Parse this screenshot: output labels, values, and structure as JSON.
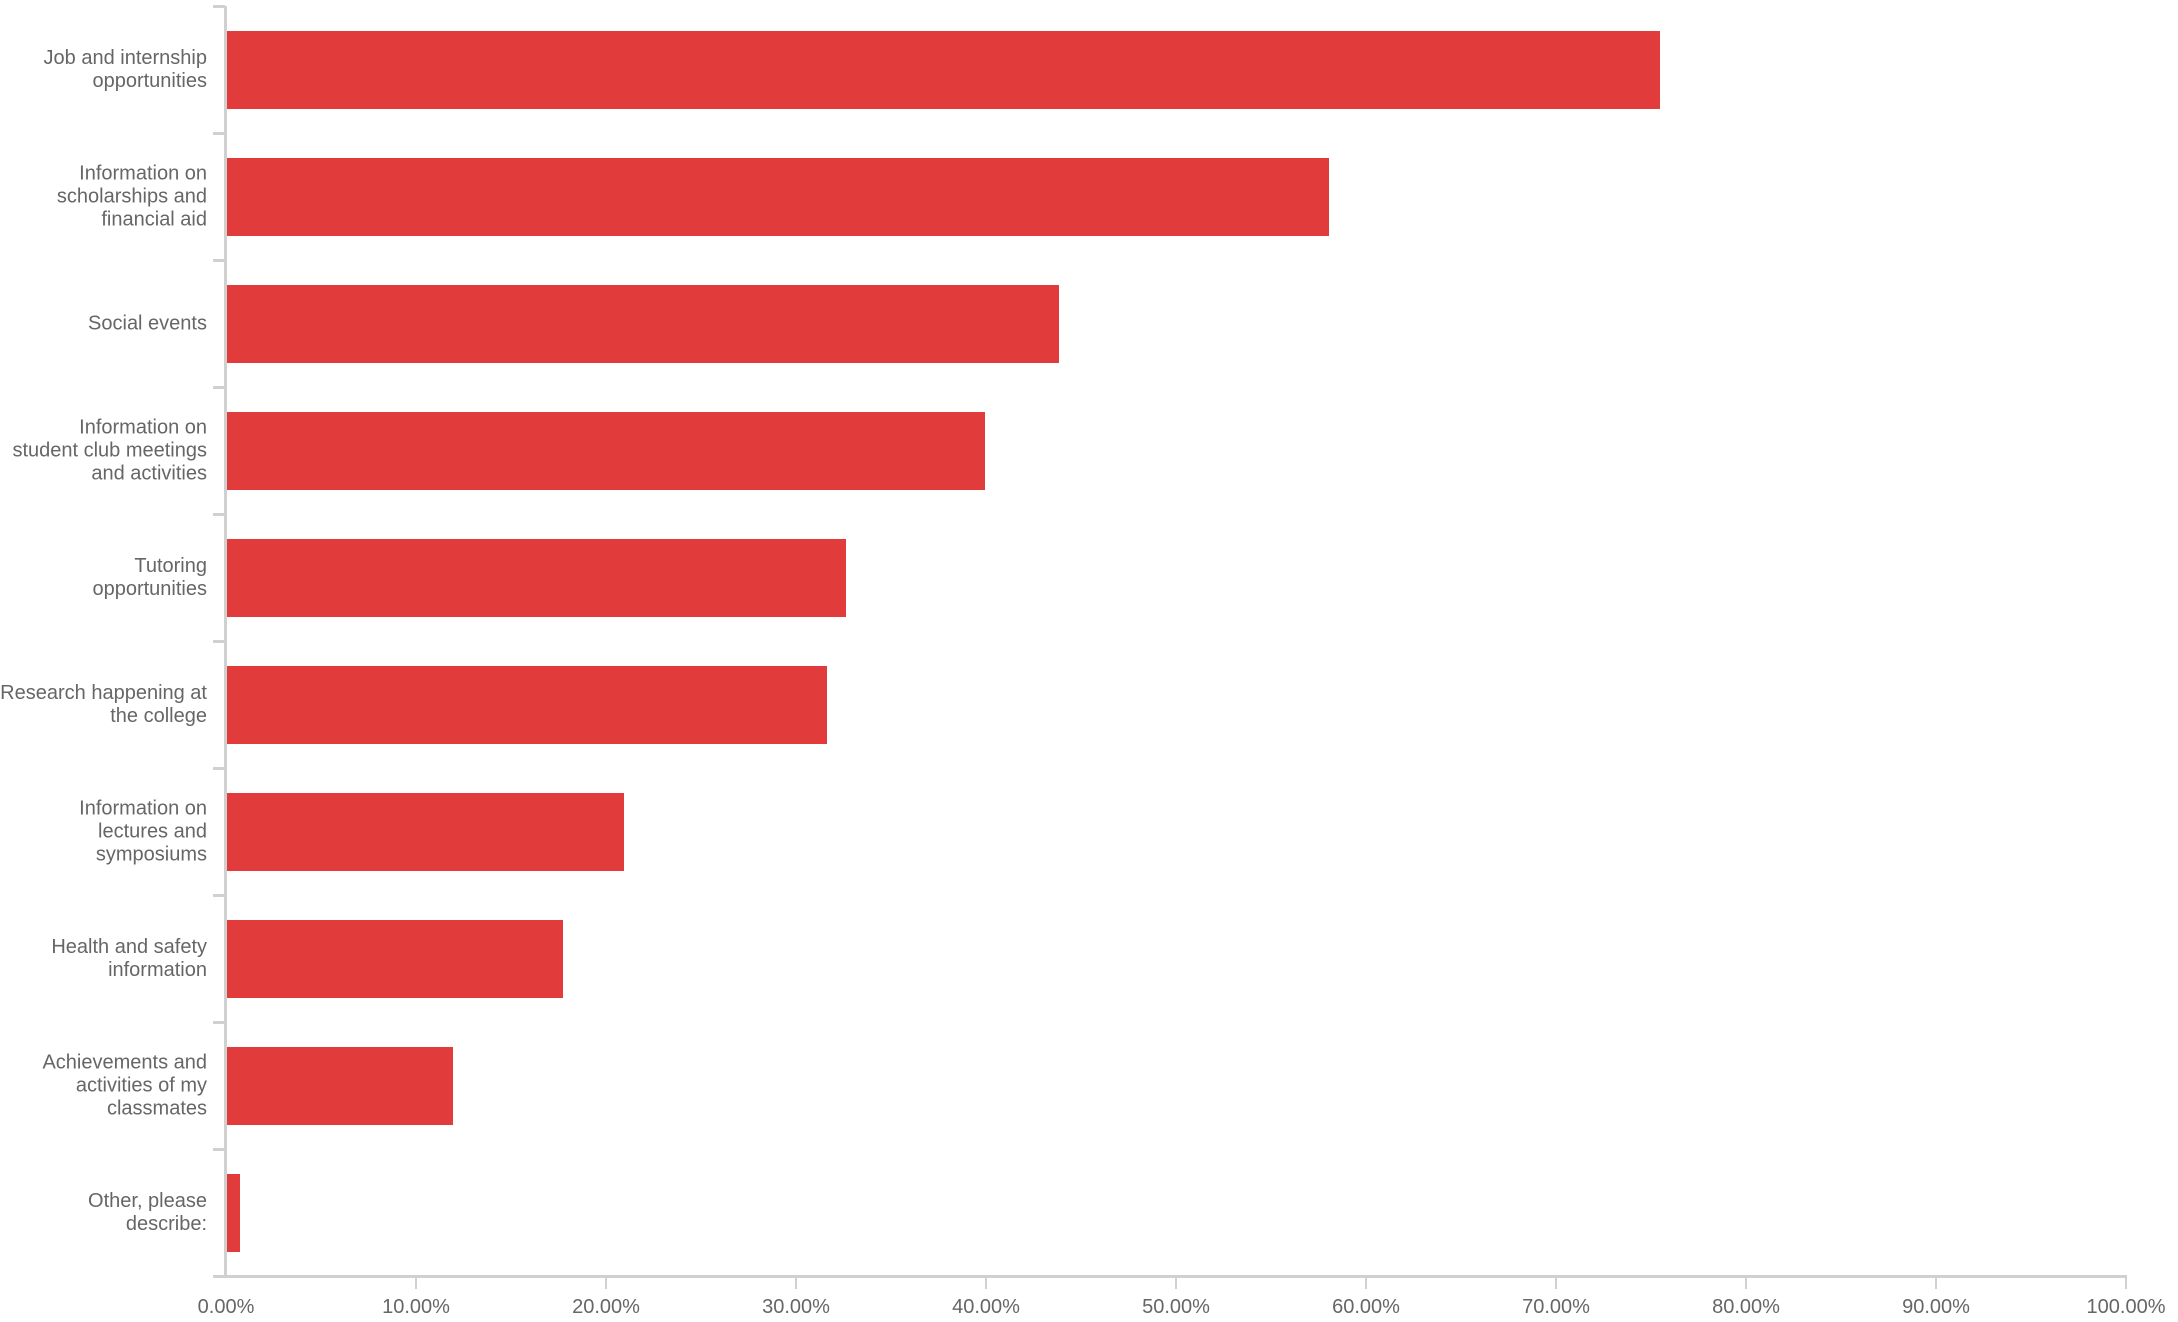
{
  "chart_data": {
    "type": "bar",
    "orientation": "horizontal",
    "title": "",
    "xlabel": "",
    "ylabel": "",
    "xlim": [
      0,
      100
    ],
    "grid": false,
    "legend": null,
    "bar_color": "#e23b3c",
    "x_ticks": [
      "0.00%",
      "10.00%",
      "20.00%",
      "30.00%",
      "40.00%",
      "50.00%",
      "60.00%",
      "70.00%",
      "80.00%",
      "90.00%",
      "100.00%"
    ],
    "categories": [
      "Job and internship\nopportunities",
      "Information on\nscholarships and\nfinancial aid",
      "Social events",
      "Information on\nstudent club meetings\nand activities",
      "Tutoring\nopportunities",
      "Research happening at\nthe college",
      "Information on\nlectures and\nsymposiums",
      "Health and safety\ninformation",
      "Achievements and\nactivities of my\nclassmates",
      "Other, please\ndescribe:"
    ],
    "values": [
      75.4,
      58.0,
      43.8,
      39.9,
      32.6,
      31.6,
      20.9,
      17.7,
      11.9,
      0.7
    ]
  }
}
